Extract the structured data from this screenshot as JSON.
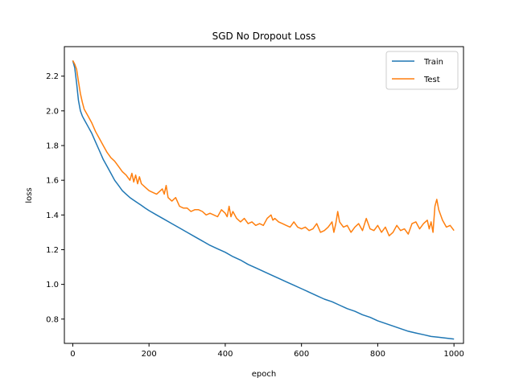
{
  "chart_data": {
    "type": "line",
    "title": "SGD No Dropout Loss",
    "xlabel": "epoch",
    "ylabel": "loss",
    "xlim": [
      -22,
      1025
    ],
    "ylim": [
      0.66,
      2.37
    ],
    "xticks": [
      0,
      200,
      400,
      600,
      800,
      1000
    ],
    "yticks": [
      0.8,
      1.0,
      1.2,
      1.4,
      1.6,
      1.8,
      2.0,
      2.2
    ],
    "xtick_labels": [
      "0",
      "200",
      "400",
      "600",
      "800",
      "1000"
    ],
    "ytick_labels": [
      "0.8",
      "1.0",
      "1.2",
      "1.4",
      "1.6",
      "1.8",
      "2.0",
      "2.2"
    ],
    "grid": false,
    "legend_position": "top-right",
    "series": [
      {
        "name": "Train",
        "color": "#1f77b4",
        "x": [
          0,
          5,
          10,
          15,
          20,
          25,
          30,
          40,
          50,
          60,
          70,
          80,
          90,
          100,
          110,
          120,
          130,
          140,
          150,
          160,
          170,
          180,
          190,
          200,
          220,
          240,
          260,
          280,
          300,
          320,
          340,
          360,
          380,
          400,
          420,
          440,
          460,
          480,
          500,
          520,
          540,
          560,
          580,
          600,
          620,
          640,
          660,
          680,
          700,
          720,
          740,
          760,
          780,
          800,
          820,
          840,
          860,
          880,
          900,
          920,
          940,
          960,
          980,
          1000
        ],
        "y": [
          2.29,
          2.25,
          2.16,
          2.06,
          2.0,
          1.97,
          1.95,
          1.91,
          1.87,
          1.82,
          1.77,
          1.72,
          1.68,
          1.64,
          1.6,
          1.57,
          1.54,
          1.52,
          1.5,
          1.485,
          1.47,
          1.455,
          1.44,
          1.425,
          1.4,
          1.375,
          1.35,
          1.325,
          1.3,
          1.275,
          1.25,
          1.225,
          1.205,
          1.185,
          1.16,
          1.14,
          1.115,
          1.095,
          1.075,
          1.055,
          1.035,
          1.015,
          0.995,
          0.975,
          0.955,
          0.935,
          0.915,
          0.9,
          0.88,
          0.86,
          0.845,
          0.825,
          0.81,
          0.79,
          0.775,
          0.76,
          0.745,
          0.73,
          0.72,
          0.71,
          0.7,
          0.695,
          0.69,
          0.685
        ]
      },
      {
        "name": "Test",
        "color": "#ff7f0e",
        "x": [
          0,
          5,
          10,
          15,
          20,
          25,
          30,
          40,
          50,
          60,
          70,
          80,
          90,
          100,
          110,
          120,
          130,
          140,
          150,
          155,
          160,
          165,
          170,
          175,
          180,
          190,
          200,
          210,
          220,
          230,
          235,
          240,
          245,
          250,
          260,
          270,
          280,
          290,
          300,
          310,
          320,
          330,
          340,
          350,
          360,
          370,
          380,
          390,
          400,
          405,
          410,
          415,
          420,
          430,
          440,
          450,
          460,
          470,
          480,
          490,
          500,
          510,
          520,
          525,
          530,
          540,
          550,
          560,
          570,
          580,
          590,
          600,
          610,
          620,
          630,
          640,
          650,
          660,
          670,
          680,
          685,
          690,
          695,
          700,
          710,
          720,
          730,
          740,
          750,
          760,
          770,
          780,
          790,
          800,
          810,
          820,
          830,
          840,
          850,
          860,
          870,
          880,
          890,
          900,
          910,
          920,
          930,
          935,
          940,
          945,
          950,
          955,
          960,
          970,
          980,
          990,
          1000
        ],
        "y": [
          2.29,
          2.27,
          2.24,
          2.17,
          2.1,
          2.05,
          2.01,
          1.97,
          1.93,
          1.88,
          1.84,
          1.8,
          1.76,
          1.73,
          1.71,
          1.68,
          1.65,
          1.63,
          1.6,
          1.64,
          1.59,
          1.63,
          1.58,
          1.62,
          1.58,
          1.56,
          1.54,
          1.53,
          1.52,
          1.54,
          1.55,
          1.52,
          1.57,
          1.5,
          1.48,
          1.5,
          1.45,
          1.44,
          1.44,
          1.42,
          1.43,
          1.43,
          1.42,
          1.4,
          1.41,
          1.4,
          1.39,
          1.43,
          1.41,
          1.39,
          1.45,
          1.39,
          1.42,
          1.38,
          1.36,
          1.38,
          1.35,
          1.36,
          1.34,
          1.35,
          1.34,
          1.38,
          1.4,
          1.37,
          1.38,
          1.36,
          1.35,
          1.34,
          1.33,
          1.36,
          1.33,
          1.32,
          1.33,
          1.31,
          1.32,
          1.35,
          1.3,
          1.31,
          1.33,
          1.36,
          1.3,
          1.35,
          1.42,
          1.36,
          1.33,
          1.34,
          1.3,
          1.33,
          1.35,
          1.31,
          1.38,
          1.32,
          1.31,
          1.34,
          1.3,
          1.33,
          1.28,
          1.3,
          1.34,
          1.31,
          1.32,
          1.29,
          1.35,
          1.36,
          1.32,
          1.35,
          1.37,
          1.32,
          1.36,
          1.3,
          1.45,
          1.49,
          1.43,
          1.37,
          1.33,
          1.34,
          1.31
        ]
      }
    ]
  }
}
